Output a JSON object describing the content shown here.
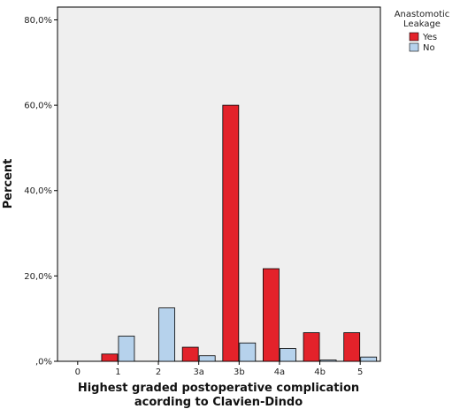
{
  "chart_data": {
    "type": "bar",
    "title": "",
    "xlabel": "Highest graded postoperative complication acording to Clavien-Dindo",
    "xlabel_lines": [
      "Highest graded postoperative complication",
      "acording to Clavien-Dindo"
    ],
    "ylabel": "Percent",
    "categories": [
      "0",
      "1",
      "2",
      "3a",
      "3b",
      "4a",
      "4b",
      "5"
    ],
    "ylim": [
      0,
      83
    ],
    "yticks": [
      0,
      20,
      40,
      60,
      80
    ],
    "ytick_labels": [
      ",0%",
      "20,0%",
      "40,0%",
      "60,0%",
      "80,0%"
    ],
    "grid": false,
    "legend": {
      "title_lines": [
        "Anastomotic",
        "Leakage"
      ],
      "placement": "right",
      "entries": [
        "Yes",
        "No"
      ]
    },
    "series": [
      {
        "name": "Yes",
        "color": "#e3222a",
        "values": [
          0,
          1.7,
          0,
          3.3,
          60.0,
          21.7,
          6.7,
          6.7
        ]
      },
      {
        "name": "No",
        "color": "#b6d2ec",
        "values": [
          0,
          5.9,
          12.5,
          1.3,
          4.3,
          3.0,
          0.3,
          1.0
        ]
      }
    ],
    "plot_background": "#efefef"
  }
}
